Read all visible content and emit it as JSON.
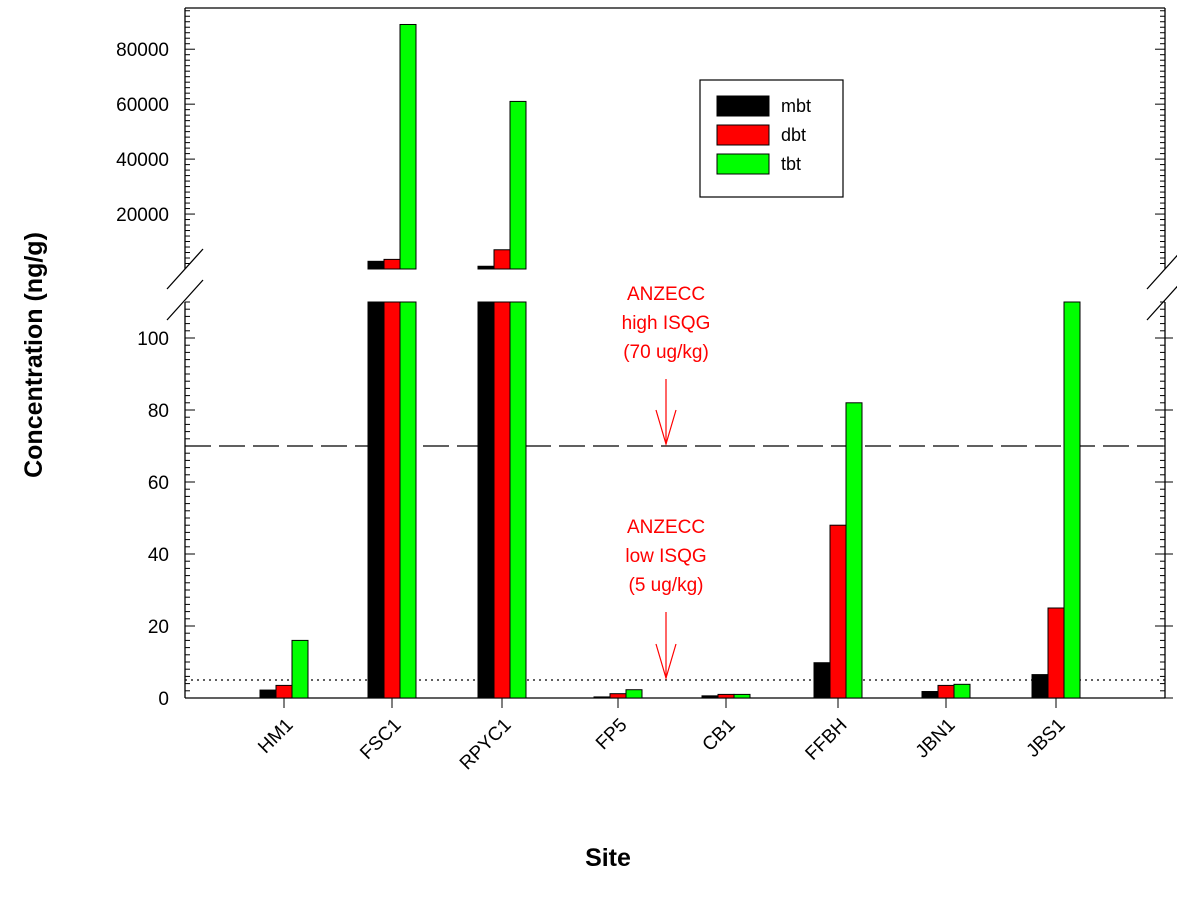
{
  "chart_data": {
    "type": "bar",
    "xlabel": "Site",
    "ylabel": "Concentration (ng/g)",
    "categories": [
      "HM1",
      "FSC1",
      "RPYC1",
      "FP5",
      "CB1",
      "FFBH",
      "JBN1",
      "JBS1"
    ],
    "series": [
      {
        "name": "mbt",
        "color": "#000000",
        "values": [
          2.2,
          2800,
          1000,
          0.3,
          0.6,
          9.8,
          1.8,
          6.5
        ]
      },
      {
        "name": "dbt",
        "color": "#ff0000",
        "values": [
          3.5,
          3500,
          7000,
          1.2,
          1.0,
          48,
          3.5,
          25
        ]
      },
      {
        "name": "tbt",
        "color": "#00ff00",
        "values": [
          16,
          89000,
          61000,
          2.3,
          1.0,
          82,
          3.8,
          110
        ]
      }
    ],
    "axis": {
      "broken": true,
      "lower_ylim": [
        0,
        110
      ],
      "lower_ticks": [
        "0",
        "20",
        "40",
        "60",
        "80",
        "100"
      ],
      "upper_ylim": [
        0,
        95000
      ],
      "upper_ticks": [
        "20000",
        "40000",
        "60000",
        "80000"
      ]
    },
    "legend": {
      "placement": "top-right",
      "entries": [
        "mbt",
        "dbt",
        "tbt"
      ]
    },
    "reference_lines": [
      {
        "value": 70,
        "style": "dashed",
        "label_lines": [
          "ANZECC",
          "high ISQG",
          "(70 ug/kg)"
        ],
        "color": "#ff0000"
      },
      {
        "value": 5,
        "style": "dotted",
        "label_lines": [
          "ANZECC",
          "low ISQG",
          "(5 ug/kg)"
        ],
        "color": "#ff0000"
      }
    ],
    "grid": false
  }
}
